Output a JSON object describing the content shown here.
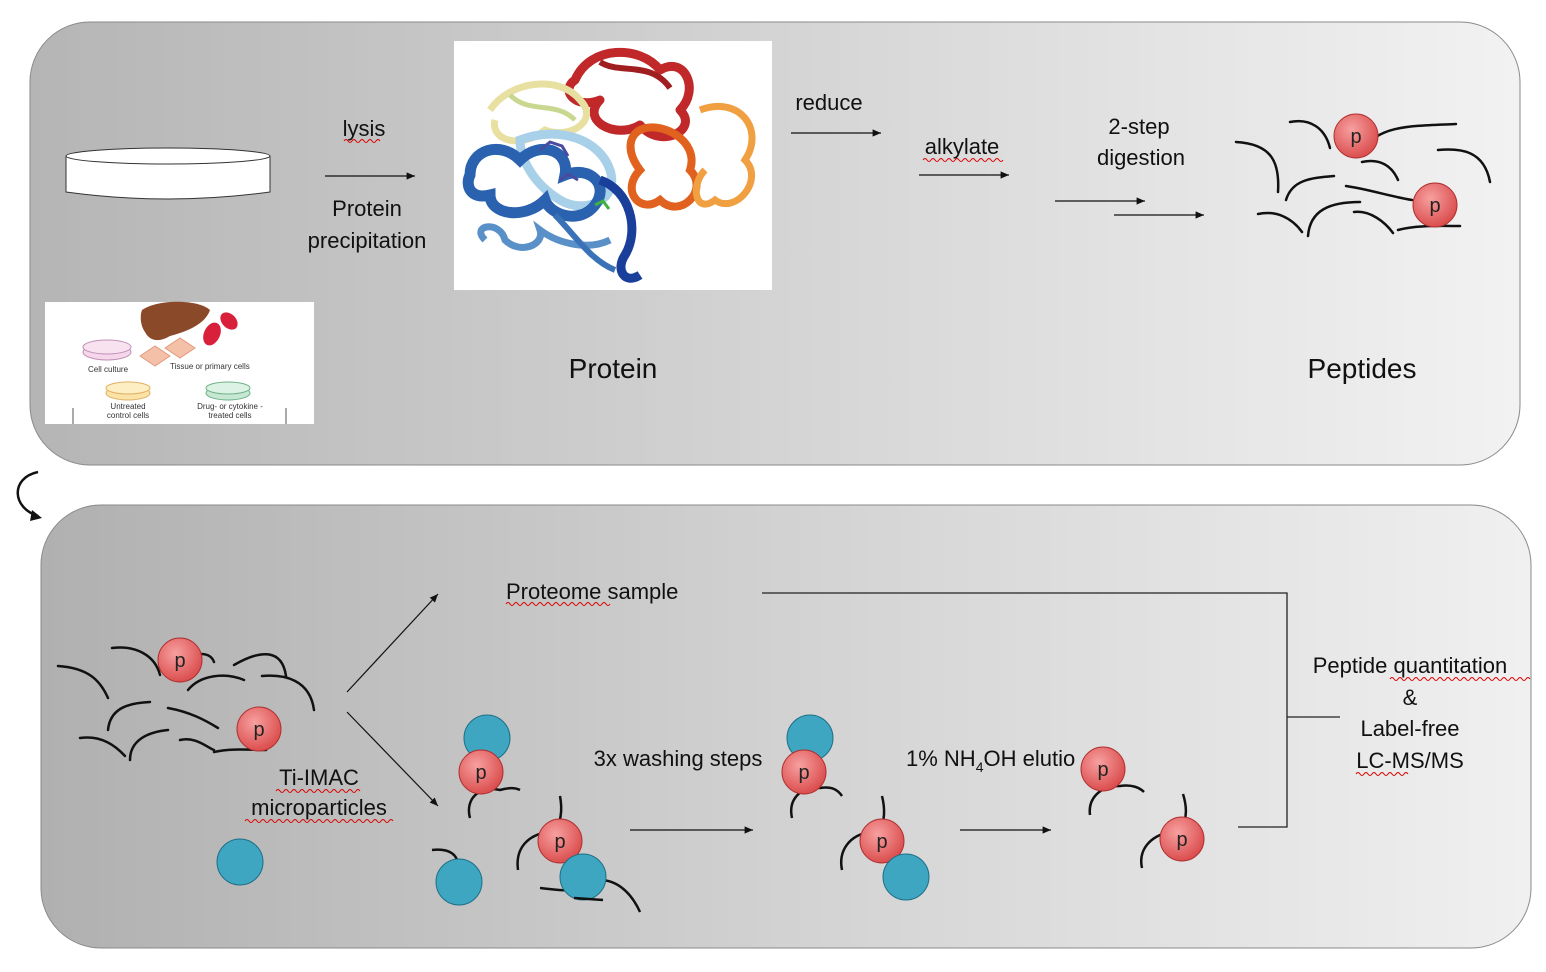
{
  "top_panel": {
    "lysis": "lysis",
    "protein_precipitation_line1": "Protein",
    "protein_precipitation_line2": "precipitation",
    "reduce": "reduce",
    "alkylate": "alkylate",
    "digestion_line1": "2-step",
    "digestion_line2": "digestion",
    "protein_label": "Protein",
    "peptides_label": "Peptides",
    "phospho_mark": "p",
    "sample_inset": {
      "cell_culture": "Cell culture",
      "tissue": "Tissue or primary cells",
      "untreated_line1": "Untreated",
      "untreated_line2": "control cells",
      "treated_line1": "Drug- or cytokine -",
      "treated_line2": "treated  cells"
    }
  },
  "bottom_panel": {
    "proteome_sample": "Proteome sample",
    "ti_imac_line1": "Ti-IMAC",
    "ti_imac_line2": "microparticles",
    "washing": "3x washing steps",
    "elution_prefix": "1% NH",
    "elution_subscript": "4",
    "elution_suffix": "OH elutio",
    "quant_line1": "Peptide quantitation",
    "quant_line2": "&",
    "quant_line3": "Label-free",
    "quant_line4": "LC-MS/MS",
    "phospho_mark": "p"
  },
  "colors": {
    "phospho_fill": "#e85a5a",
    "bead_fill": "#3ea6c0",
    "panel_gray": "#c8c8c8"
  }
}
